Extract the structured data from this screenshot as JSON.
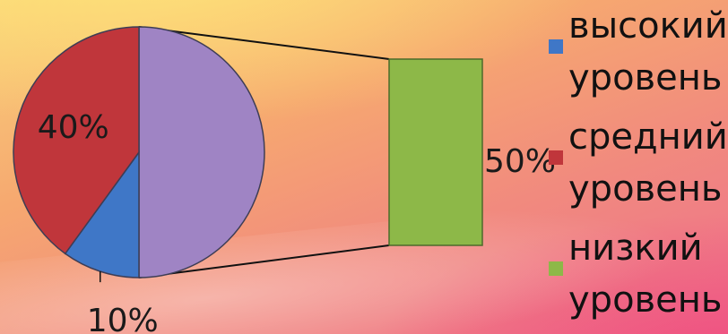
{
  "chart_data": {
    "type": "pie",
    "subtype": "bar-of-pie",
    "categories": [
      "высокий уровень",
      "средний уровень",
      "низкий уровень"
    ],
    "values": [
      10,
      40,
      50
    ],
    "data_labels": [
      "10%",
      "40%",
      "50%"
    ],
    "colors": [
      "#3f77c7",
      "#c0363b",
      "#8db848"
    ],
    "pie_remainder_color": "#9f84c4",
    "legend": {
      "position": "right",
      "entries": [
        {
          "lines": [
            "высокий",
            "уровень"
          ],
          "color": "#3f77c7"
        },
        {
          "lines": [
            "средний",
            "уровень"
          ],
          "color": "#c0363b"
        },
        {
          "lines": [
            "низкий",
            "уровень"
          ],
          "color": "#8db848"
        }
      ]
    },
    "title": "",
    "grid": false
  }
}
